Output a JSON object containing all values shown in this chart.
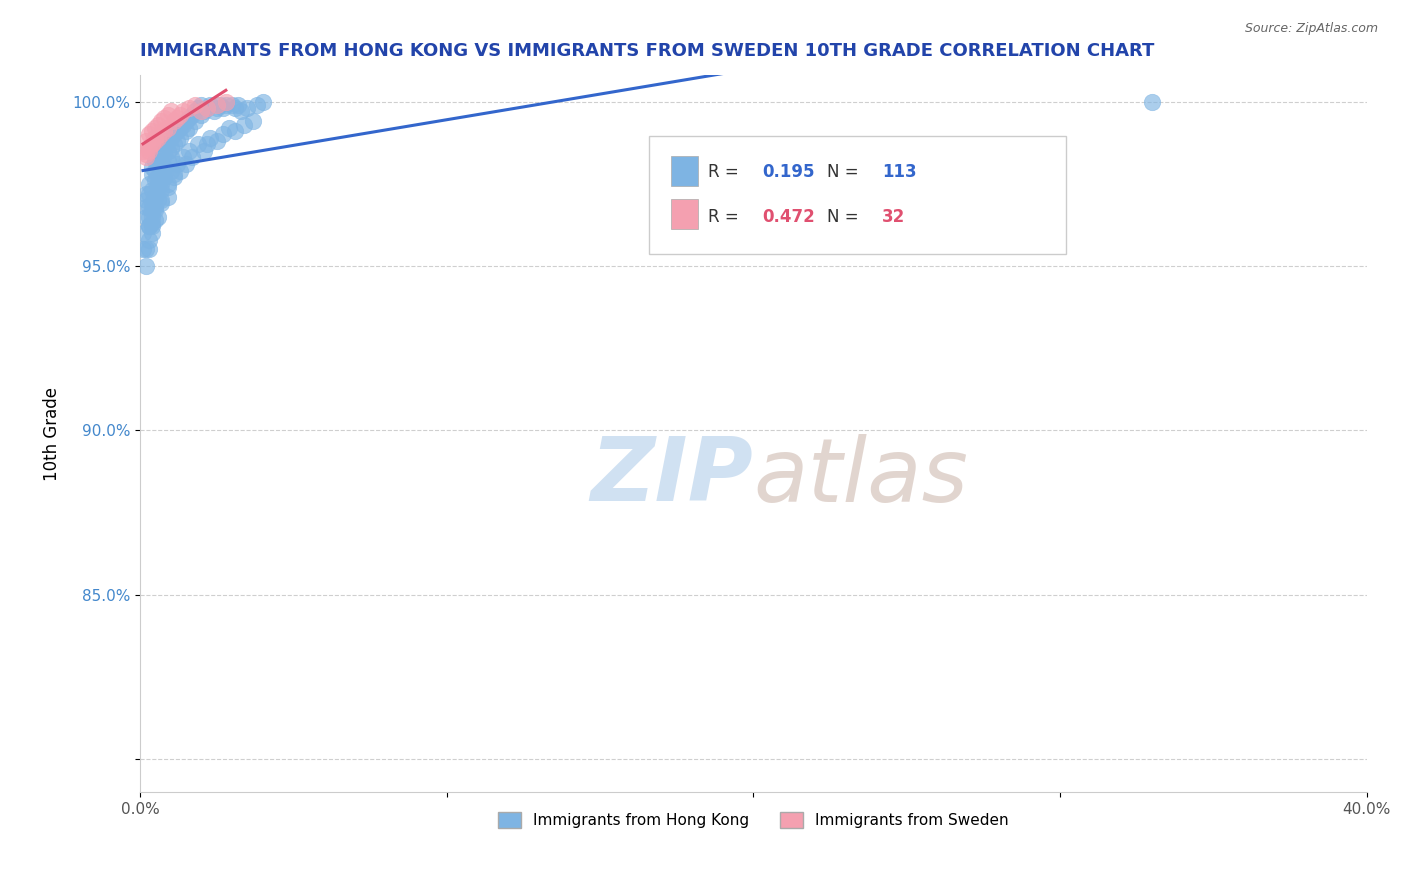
{
  "title": "IMMIGRANTS FROM HONG KONG VS IMMIGRANTS FROM SWEDEN 10TH GRADE CORRELATION CHART",
  "source": "Source: ZipAtlas.com",
  "ylabel": "10th Grade",
  "xlim": [
    0.0,
    0.4
  ],
  "ylim": [
    0.79,
    1.008
  ],
  "xticks": [
    0.0,
    0.1,
    0.2,
    0.3,
    0.4
  ],
  "xticklabels": [
    "0.0%",
    "",
    "",
    "",
    "40.0%"
  ],
  "yticks": [
    0.8,
    0.85,
    0.9,
    0.95,
    1.0
  ],
  "yticklabels": [
    "",
    "85.0%",
    "90.0%",
    "95.0%",
    "100.0%"
  ],
  "hk_color": "#7EB4E3",
  "sw_color": "#F4A0B0",
  "hk_line_color": "#3366CC",
  "sw_line_color": "#E05070",
  "R_hk": 0.195,
  "N_hk": 113,
  "R_sw": 0.472,
  "N_sw": 32,
  "watermark_zip": "ZIP",
  "watermark_atlas": "atlas",
  "legend_hk": "Immigrants from Hong Kong",
  "legend_sw": "Immigrants from Sweden",
  "hk_x": [
    0.001,
    0.001,
    0.002,
    0.002,
    0.002,
    0.002,
    0.003,
    0.003,
    0.003,
    0.003,
    0.003,
    0.004,
    0.004,
    0.004,
    0.004,
    0.004,
    0.004,
    0.005,
    0.005,
    0.005,
    0.005,
    0.005,
    0.005,
    0.006,
    0.006,
    0.006,
    0.006,
    0.006,
    0.007,
    0.007,
    0.007,
    0.007,
    0.008,
    0.008,
    0.008,
    0.008,
    0.009,
    0.009,
    0.009,
    0.01,
    0.01,
    0.01,
    0.011,
    0.011,
    0.012,
    0.012,
    0.013,
    0.013,
    0.014,
    0.015,
    0.015,
    0.016,
    0.016,
    0.017,
    0.018,
    0.018,
    0.019,
    0.02,
    0.02,
    0.021,
    0.022,
    0.023,
    0.024,
    0.025,
    0.026,
    0.027,
    0.028,
    0.03,
    0.031,
    0.032,
    0.033,
    0.035,
    0.038,
    0.04,
    0.002,
    0.003,
    0.003,
    0.004,
    0.004,
    0.005,
    0.005,
    0.006,
    0.007,
    0.007,
    0.008,
    0.009,
    0.009,
    0.01,
    0.011,
    0.012,
    0.013,
    0.014,
    0.015,
    0.016,
    0.017,
    0.019,
    0.021,
    0.022,
    0.023,
    0.025,
    0.027,
    0.029,
    0.031,
    0.034,
    0.037,
    0.002,
    0.003,
    0.004,
    0.006,
    0.007,
    0.009,
    0.011,
    0.33
  ],
  "hk_y": [
    0.96,
    0.955,
    0.97,
    0.965,
    0.972,
    0.968,
    0.975,
    0.968,
    0.972,
    0.965,
    0.962,
    0.98,
    0.978,
    0.973,
    0.969,
    0.965,
    0.962,
    0.982,
    0.979,
    0.976,
    0.971,
    0.968,
    0.964,
    0.984,
    0.981,
    0.977,
    0.974,
    0.97,
    0.985,
    0.982,
    0.978,
    0.975,
    0.987,
    0.984,
    0.98,
    0.977,
    0.988,
    0.985,
    0.982,
    0.989,
    0.986,
    0.983,
    0.99,
    0.987,
    0.991,
    0.988,
    0.992,
    0.989,
    0.993,
    0.994,
    0.991,
    0.995,
    0.992,
    0.996,
    0.997,
    0.994,
    0.998,
    0.999,
    0.996,
    0.997,
    0.998,
    0.999,
    0.997,
    0.998,
    0.999,
    0.998,
    0.999,
    0.999,
    0.998,
    0.999,
    0.997,
    0.998,
    0.999,
    1.0,
    0.955,
    0.962,
    0.958,
    0.967,
    0.963,
    0.971,
    0.967,
    0.975,
    0.973,
    0.969,
    0.977,
    0.975,
    0.971,
    0.979,
    0.977,
    0.981,
    0.979,
    0.983,
    0.981,
    0.985,
    0.983,
    0.987,
    0.985,
    0.987,
    0.989,
    0.988,
    0.99,
    0.992,
    0.991,
    0.993,
    0.994,
    0.95,
    0.955,
    0.96,
    0.965,
    0.97,
    0.974,
    0.978,
    1.0
  ],
  "sw_x": [
    0.001,
    0.002,
    0.002,
    0.003,
    0.003,
    0.004,
    0.004,
    0.005,
    0.005,
    0.006,
    0.006,
    0.007,
    0.007,
    0.008,
    0.008,
    0.009,
    0.009,
    0.01,
    0.011,
    0.012,
    0.013,
    0.014,
    0.016,
    0.018,
    0.02,
    0.022,
    0.025,
    0.028,
    0.002,
    0.003,
    0.004,
    0.005
  ],
  "sw_y": [
    0.985,
    0.988,
    0.984,
    0.99,
    0.986,
    0.991,
    0.987,
    0.992,
    0.988,
    0.993,
    0.989,
    0.994,
    0.99,
    0.995,
    0.991,
    0.996,
    0.992,
    0.997,
    0.994,
    0.995,
    0.996,
    0.997,
    0.998,
    0.999,
    0.997,
    0.998,
    0.999,
    1.0,
    0.983,
    0.985,
    0.987,
    0.989
  ]
}
